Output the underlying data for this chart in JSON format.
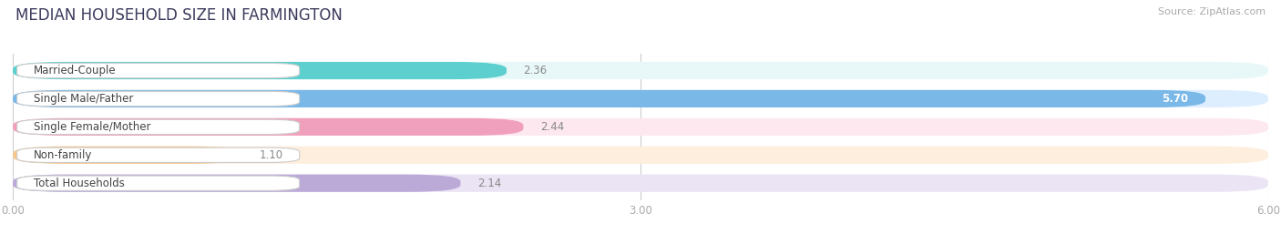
{
  "title": "MEDIAN HOUSEHOLD SIZE IN FARMINGTON",
  "source": "Source: ZipAtlas.com",
  "categories": [
    "Married-Couple",
    "Single Male/Father",
    "Single Female/Mother",
    "Non-family",
    "Total Households"
  ],
  "values": [
    2.36,
    5.7,
    2.44,
    1.1,
    2.14
  ],
  "bar_colors": [
    "#5ecfcf",
    "#7ab8e8",
    "#f0a0bc",
    "#f5c890",
    "#bbaad8"
  ],
  "bar_bg_colors": [
    "#e8f8f8",
    "#ddeeff",
    "#fde8f0",
    "#feeedd",
    "#eae4f4"
  ],
  "xlim": [
    0,
    6.0
  ],
  "xticks": [
    0.0,
    3.0,
    6.0
  ],
  "xtick_labels": [
    "0.00",
    "3.00",
    "6.00"
  ],
  "background_color": "#ffffff",
  "title_color": "#3a3a5c",
  "title_fontsize": 12,
  "label_fontsize": 8.5,
  "value_fontsize": 8.5,
  "source_fontsize": 8
}
